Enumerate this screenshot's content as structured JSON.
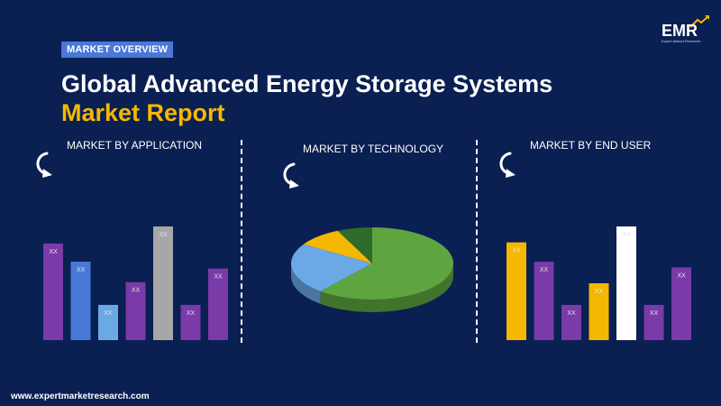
{
  "header": {
    "badge": "MARKET OVERVIEW",
    "title_line1": "Global Advanced Energy Storage Systems",
    "title_line2": "Market Report",
    "logo_text": "EMR",
    "logo_tagline": "Expert Market Research"
  },
  "footer": {
    "url": "www.expertmarketresearch.com"
  },
  "colors": {
    "background": "#0a1f52",
    "accent_yellow": "#f5b800",
    "purple": "#7a3aa8",
    "blue": "#4a78d6",
    "light_blue": "#6aa8e6",
    "gray": "#a7a7a7",
    "green": "#5ea540",
    "white": "#ffffff"
  },
  "chart_data": [
    {
      "type": "bar",
      "title": "MARKET BY APPLICATION",
      "values": [
        0.85,
        0.69,
        0.31,
        0.51,
        1.0,
        0.31,
        0.63
      ],
      "data_labels": [
        "XX",
        "XX",
        "XX",
        "XX",
        "XX",
        "XX",
        "XX"
      ],
      "colors": [
        "#7a3aa8",
        "#4a78d6",
        "#6aa8e6",
        "#7a3aa8",
        "#a7a7a7",
        "#7a3aa8",
        "#7a3aa8"
      ]
    },
    {
      "type": "pie",
      "title": "MARKET BY TECHNOLOGY",
      "values": [
        0.61,
        0.23,
        0.09,
        0.07
      ],
      "colors": [
        "#5ea540",
        "#6aa8e6",
        "#f5b800",
        "#2f6b2a"
      ]
    },
    {
      "type": "bar",
      "title": "MARKET BY END USER",
      "values": [
        0.86,
        0.69,
        0.31,
        0.5,
        1.0,
        0.31,
        0.64
      ],
      "data_labels": [
        "XX",
        "XX",
        "XX",
        "XX",
        "XX",
        "XX",
        "XX"
      ],
      "colors": [
        "#f5b800",
        "#7a3aa8",
        "#7a3aa8",
        "#f5b800",
        "#ffffff",
        "#7a3aa8",
        "#7a3aa8"
      ]
    }
  ]
}
